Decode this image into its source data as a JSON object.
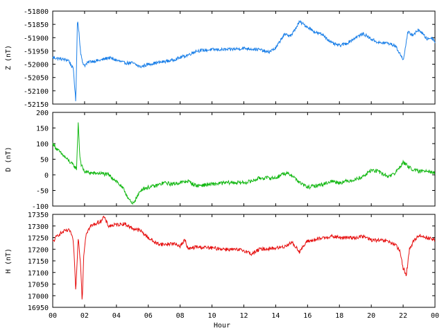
{
  "chart_data": {
    "type": "line",
    "xlabel": "Hour",
    "x_ticks": [
      "00",
      "02",
      "04",
      "06",
      "08",
      "10",
      "12",
      "14",
      "16",
      "18",
      "20",
      "22",
      "00"
    ],
    "xlim": [
      0,
      24
    ],
    "grid": false,
    "panels": [
      {
        "ylabel": "Z (nT)",
        "ylim": [
          -52150,
          -51800
        ],
        "y_ticks": [
          -51800,
          -51850,
          -51900,
          -51950,
          -52000,
          -52050,
          -52100,
          -52150
        ],
        "color": "#1a7fe8",
        "x": [
          0,
          0.5,
          1.0,
          1.3,
          1.45,
          1.55,
          1.65,
          1.75,
          1.85,
          2.0,
          2.3,
          3.0,
          3.5,
          4.0,
          4.5,
          5.0,
          5.5,
          6.0,
          6.5,
          7.0,
          7.5,
          8.0,
          8.5,
          9.0,
          10.0,
          11.0,
          12.0,
          13.0,
          13.5,
          14.0,
          14.5,
          15.0,
          15.5,
          16.0,
          16.5,
          17.0,
          17.5,
          18.0,
          18.5,
          19.0,
          19.5,
          20.0,
          20.5,
          21.0,
          21.5,
          21.8,
          22.0,
          22.3,
          22.6,
          23.0,
          23.5,
          23.8,
          24.0
        ],
        "values": [
          -51975,
          -51980,
          -51985,
          -52020,
          -52145,
          -51830,
          -51880,
          -51955,
          -51990,
          -52005,
          -51990,
          -51985,
          -51975,
          -51985,
          -51995,
          -51995,
          -52010,
          -52000,
          -51995,
          -51990,
          -51985,
          -51975,
          -51965,
          -51950,
          -51945,
          -51945,
          -51940,
          -51945,
          -51955,
          -51940,
          -51890,
          -51890,
          -51840,
          -51860,
          -51880,
          -51890,
          -51920,
          -51930,
          -51920,
          -51900,
          -51885,
          -51905,
          -51920,
          -51920,
          -51930,
          -51960,
          -51985,
          -51880,
          -51890,
          -51870,
          -51905,
          -51900,
          -51915
        ],
        "noise": 6
      },
      {
        "ylabel": "D (nT)",
        "ylim": [
          -100,
          200
        ],
        "y_ticks": [
          200,
          150,
          100,
          50,
          0,
          -50,
          -100
        ],
        "color": "#13b813",
        "x": [
          0,
          0.3,
          0.8,
          1.2,
          1.5,
          1.6,
          1.7,
          1.8,
          2.0,
          2.5,
          3.0,
          3.5,
          4.0,
          4.5,
          4.8,
          5.0,
          5.3,
          5.6,
          6.0,
          6.5,
          7.0,
          7.5,
          8.0,
          8.5,
          9.0,
          10.0,
          11.0,
          12.0,
          12.5,
          13.0,
          14.0,
          14.5,
          15.0,
          15.5,
          16.0,
          16.5,
          17.0,
          17.5,
          18.0,
          19.0,
          19.5,
          20.0,
          20.5,
          21.0,
          21.5,
          22.0,
          22.5,
          23.0,
          23.5,
          24.0
        ],
        "values": [
          100,
          80,
          55,
          35,
          20,
          170,
          60,
          30,
          10,
          5,
          5,
          0,
          -20,
          -50,
          -80,
          -95,
          -70,
          -45,
          -40,
          -35,
          -25,
          -30,
          -25,
          -20,
          -35,
          -30,
          -25,
          -25,
          -20,
          -10,
          -10,
          5,
          0,
          -25,
          -40,
          -35,
          -30,
          -20,
          -25,
          -15,
          -5,
          15,
          10,
          -5,
          5,
          40,
          20,
          10,
          15,
          5
        ],
        "noise": 6
      },
      {
        "ylabel": "H (nT)",
        "ylim": [
          16950,
          17350
        ],
        "y_ticks": [
          17350,
          17300,
          17250,
          17200,
          17150,
          17100,
          17050,
          17000,
          16950
        ],
        "color": "#e60e0e",
        "x": [
          0,
          0.3,
          0.8,
          1.1,
          1.3,
          1.45,
          1.6,
          1.75,
          1.85,
          1.95,
          2.1,
          2.4,
          3.0,
          3.2,
          3.5,
          4.0,
          4.5,
          5.0,
          5.5,
          6.0,
          6.5,
          7.0,
          7.5,
          8.0,
          8.3,
          8.5,
          9.0,
          10.0,
          11.0,
          12.0,
          12.5,
          13.0,
          14.0,
          14.5,
          15.0,
          15.5,
          16.0,
          16.5,
          17.0,
          17.5,
          18.0,
          19.0,
          19.5,
          20.0,
          21.0,
          21.5,
          21.8,
          22.0,
          22.2,
          22.4,
          22.7,
          23.0,
          23.5,
          24.0
        ],
        "values": [
          17230,
          17260,
          17280,
          17280,
          17230,
          17020,
          17250,
          17140,
          16975,
          17180,
          17270,
          17300,
          17320,
          17340,
          17300,
          17305,
          17310,
          17290,
          17280,
          17250,
          17225,
          17220,
          17225,
          17215,
          17240,
          17200,
          17210,
          17205,
          17200,
          17195,
          17180,
          17200,
          17205,
          17210,
          17230,
          17190,
          17235,
          17240,
          17250,
          17255,
          17250,
          17250,
          17255,
          17240,
          17235,
          17220,
          17190,
          17120,
          17090,
          17200,
          17240,
          17260,
          17250,
          17240
        ],
        "noise": 8
      }
    ]
  }
}
